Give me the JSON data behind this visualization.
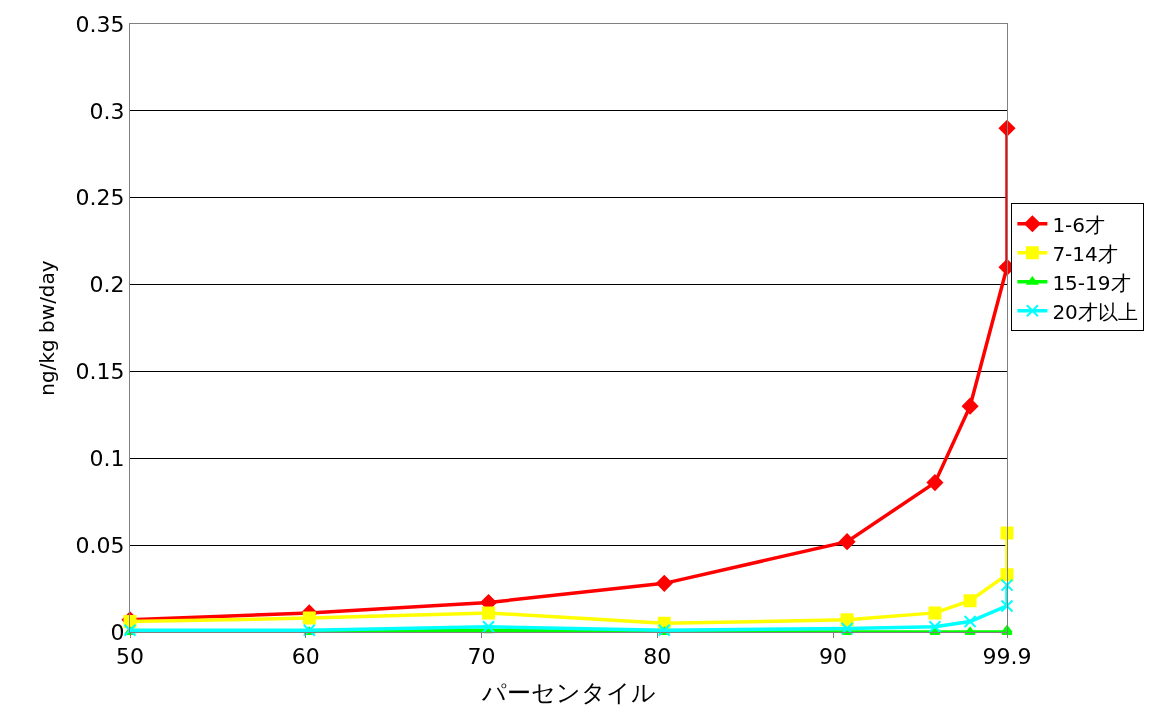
{
  "chart_data": {
    "type": "line",
    "xlabel": "パーセンタイル",
    "ylabel": "ng/kg bw/day",
    "x": [
      50,
      60.2,
      70.4,
      80.4,
      90.8,
      95.8,
      97.8,
      99.9,
      99.9
    ],
    "series": [
      {
        "name": "1-6才",
        "color": "#ff0000",
        "marker": "diamond",
        "values": [
          0.007,
          0.011,
          0.017,
          0.028,
          0.052,
          0.086,
          0.13,
          0.21,
          0.29
        ]
      },
      {
        "name": "7-14才",
        "color": "#ffff00",
        "marker": "square",
        "values": [
          0.006,
          0.008,
          0.011,
          0.005,
          0.007,
          0.011,
          0.018,
          0.033,
          0.057
        ]
      },
      {
        "name": "15-19才",
        "color": "#00ff00",
        "marker": "triangle",
        "values": [
          0,
          0,
          0.001,
          0,
          0,
          0,
          0,
          0,
          0.001
        ]
      },
      {
        "name": "20才以上",
        "color": "#00ffff",
        "marker": "cross",
        "values": [
          0.001,
          0.001,
          0.003,
          0.001,
          0.002,
          0.003,
          0.006,
          0.015,
          0.027
        ]
      }
    ],
    "xlim": [
      50,
      99.9
    ],
    "xticks": [
      50,
      60,
      70,
      80,
      90,
      99.9
    ],
    "ylim": [
      0,
      0.35
    ],
    "yticks": [
      0,
      0.05,
      0.1,
      0.15,
      0.2,
      0.25,
      0.3,
      0.35
    ],
    "grid": "y",
    "legend": "right",
    "line_style": "solid"
  }
}
